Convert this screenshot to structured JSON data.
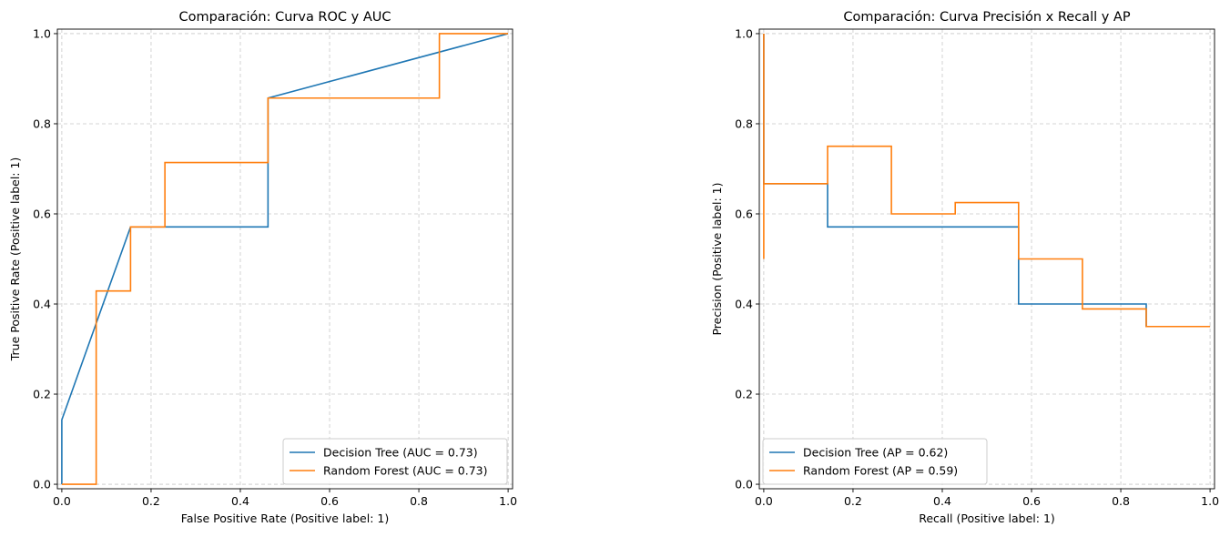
{
  "chart_data": [
    {
      "type": "line",
      "title": "Comparación: Curva ROC y AUC",
      "xlabel": "False Positive Rate (Positive label: 1)",
      "ylabel": "True Positive Rate (Positive label: 1)",
      "xlim": [
        -0.01,
        1.01
      ],
      "ylim": [
        -0.01,
        1.01
      ],
      "xticks": [
        0.0,
        0.2,
        0.4,
        0.6,
        0.8,
        1.0
      ],
      "xtick_labels": [
        "0.0",
        "0.2",
        "0.4",
        "0.6",
        "0.8",
        "1.0"
      ],
      "yticks": [
        0.0,
        0.2,
        0.4,
        0.6,
        0.8,
        1.0
      ],
      "ytick_labels": [
        "0.0",
        "0.2",
        "0.4",
        "0.6",
        "0.8",
        "1.0"
      ],
      "grid": true,
      "legend_position": "lower-right",
      "series": [
        {
          "name": "Decision Tree (AUC = 0.73)",
          "color": "#1f77b4",
          "drawstyle": "default",
          "x": [
            0.0,
            0.0,
            0.154,
            0.462,
            0.462,
            1.0
          ],
          "y": [
            0.0,
            0.143,
            0.571,
            0.571,
            0.857,
            1.0
          ]
        },
        {
          "name": "Random Forest (AUC = 0.73)",
          "color": "#ff7f0e",
          "drawstyle": "default",
          "x": [
            0.0,
            0.077,
            0.077,
            0.154,
            0.154,
            0.231,
            0.231,
            0.462,
            0.462,
            0.846,
            0.846,
            1.0
          ],
          "y": [
            0.0,
            0.0,
            0.429,
            0.429,
            0.571,
            0.571,
            0.714,
            0.714,
            0.857,
            0.857,
            1.0,
            1.0
          ]
        }
      ]
    },
    {
      "type": "line",
      "title": "Comparación: Curva Precisión x Recall y AP",
      "xlabel": "Recall (Positive label: 1)",
      "ylabel": "Precision (Positive label: 1)",
      "xlim": [
        -0.01,
        1.01
      ],
      "ylim": [
        -0.01,
        1.01
      ],
      "xticks": [
        0.0,
        0.2,
        0.4,
        0.6,
        0.8,
        1.0
      ],
      "xtick_labels": [
        "0.0",
        "0.2",
        "0.4",
        "0.6",
        "0.8",
        "1.0"
      ],
      "yticks": [
        0.0,
        0.2,
        0.4,
        0.6,
        0.8,
        1.0
      ],
      "ytick_labels": [
        "0.0",
        "0.2",
        "0.4",
        "0.6",
        "0.8",
        "1.0"
      ],
      "grid": true,
      "legend_position": "lower-left",
      "series": [
        {
          "name": "Decision Tree (AP = 0.62)",
          "color": "#1f77b4",
          "drawstyle": "steps-post",
          "x": [
            1.0,
            0.857,
            0.571,
            0.571,
            0.143,
            0.0,
            0.0
          ],
          "y": [
            0.35,
            0.4,
            0.5,
            0.571,
            0.667,
            1.0,
            1.0
          ]
        },
        {
          "name": "Random Forest (AP = 0.59)",
          "color": "#ff7f0e",
          "drawstyle": "steps-post",
          "x": [
            1.0,
            0.857,
            0.714,
            0.714,
            0.571,
            0.571,
            0.429,
            0.286,
            0.143,
            0.0,
            0.0
          ],
          "y": [
            0.35,
            0.389,
            0.455,
            0.5,
            0.571,
            0.625,
            0.6,
            0.75,
            0.667,
            0.5,
            1.0
          ]
        }
      ]
    }
  ]
}
